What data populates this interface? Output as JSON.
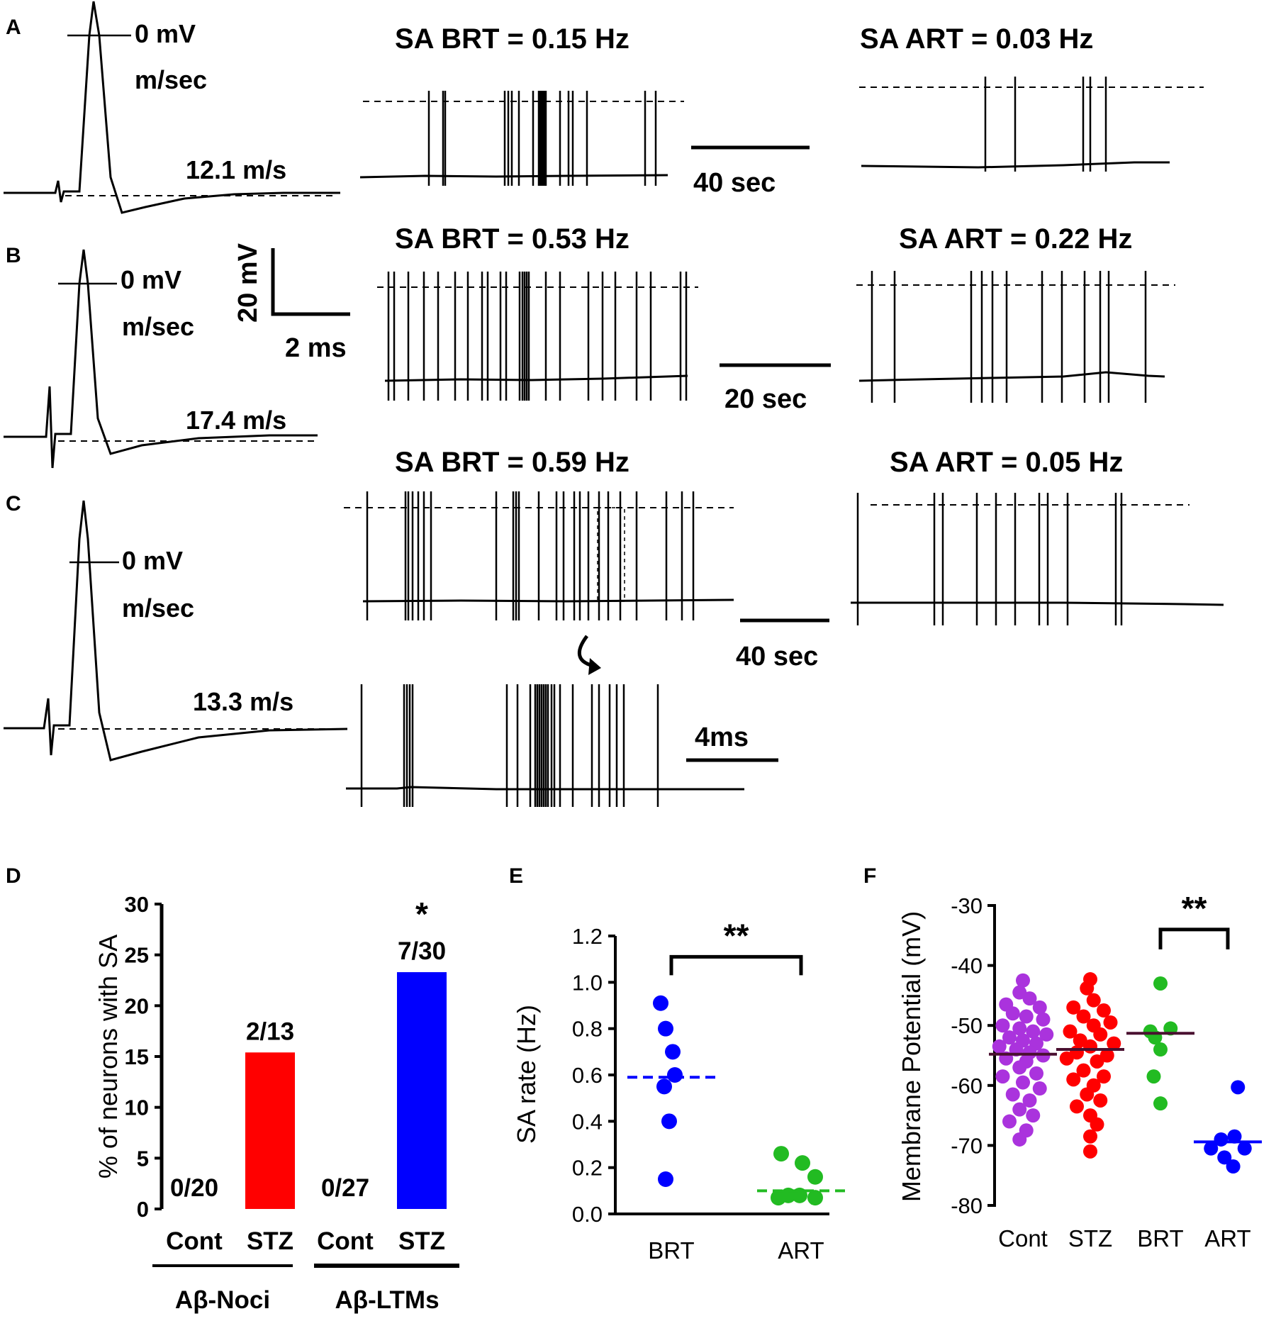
{
  "panel_labels": {
    "a": "A",
    "b": "B",
    "c": "C",
    "d": "D",
    "e": "E",
    "f": "F"
  },
  "row_a": {
    "ap_zero": "0 mV",
    "ap_time_unit": "m/sec",
    "ap_velocity": "12.1 m/s",
    "brt_title": "SA BRT = 0.15 Hz",
    "art_title": "SA ART = 0.03 Hz",
    "time_scale": "40 sec"
  },
  "row_b": {
    "ap_zero": "0 mV",
    "ap_time_unit": "m/sec",
    "ap_velocity": "17.4 m/s",
    "volt_scale": "20 mV",
    "ms_scale": "2 ms",
    "brt_title": "SA BRT = 0.53 Hz",
    "art_title": "SA ART = 0.22 Hz",
    "time_scale": "20 sec"
  },
  "row_c": {
    "ap_zero": "0 mV",
    "ap_time_unit": "m/sec",
    "ap_velocity": "13.3 m/s",
    "brt_title": "SA BRT = 0.59 Hz",
    "art_title": "SA ART = 0.05 Hz",
    "time_scale": "40 sec",
    "zoom_scale": "4ms"
  },
  "colors": {
    "red": "#ff0000",
    "blue": "#0000ff",
    "green": "#22bb22",
    "purple": "#aa33dd"
  },
  "chart_data": [
    {
      "panel": "D",
      "type": "bar",
      "ylabel": "% of neurons with SA",
      "ylim": [
        0,
        30
      ],
      "yticks": [
        "0",
        "5",
        "10",
        "15",
        "20",
        "25",
        "30"
      ],
      "categories": [
        "Cont",
        "STZ",
        "Cont",
        "STZ"
      ],
      "groups": [
        {
          "label": "Aβ-Noci",
          "bars": [
            0,
            1
          ]
        },
        {
          "label": "Aβ-LTMs",
          "bars": [
            2,
            3
          ]
        }
      ],
      "values": [
        0,
        15.4,
        0,
        23.3
      ],
      "bar_colors": [
        "#ff0000",
        "#ff0000",
        "#0000ff",
        "#0000ff"
      ],
      "data_labels": [
        "0/20",
        "2/13",
        "0/27",
        "7/30"
      ],
      "significance": [
        {
          "bar": 3,
          "label": "*"
        }
      ]
    },
    {
      "panel": "E",
      "type": "scatter",
      "ylabel": "SA rate (Hz)",
      "ylim": [
        0,
        1.2
      ],
      "yticks": [
        "0.0",
        "0.2",
        "0.4",
        "0.6",
        "0.8",
        "1.0",
        "1.2"
      ],
      "categories": [
        "BRT",
        "ART"
      ],
      "series": [
        {
          "name": "BRT",
          "color": "#0000ff",
          "median": 0.59,
          "median_style": "dashed",
          "points": [
            [
              -0.15,
              0.91
            ],
            [
              -0.08,
              0.8
            ],
            [
              0.02,
              0.7
            ],
            [
              -0.1,
              0.55
            ],
            [
              0.05,
              0.6
            ],
            [
              -0.03,
              0.4
            ],
            [
              -0.08,
              0.15
            ]
          ]
        },
        {
          "name": "ART",
          "color": "#22bb22",
          "median": 0.1,
          "median_style": "dashed",
          "points": [
            [
              -0.32,
              0.07
            ],
            [
              -0.18,
              0.08
            ],
            [
              -0.02,
              0.08
            ],
            [
              0.2,
              0.07
            ],
            [
              -0.28,
              0.26
            ],
            [
              0.02,
              0.22
            ],
            [
              0.2,
              0.16
            ]
          ]
        }
      ],
      "significance": [
        {
          "from": 0,
          "to": 1,
          "y": 1.11,
          "label": "**"
        }
      ]
    },
    {
      "panel": "F",
      "type": "scatter",
      "ylabel": "Membrane Potential (mV)",
      "ylim": [
        -80,
        -30
      ],
      "yticks": [
        "-30",
        "-40",
        "-50",
        "-60",
        "-70",
        "-80"
      ],
      "categories": [
        "Cont",
        "STZ",
        "BRT",
        "ART"
      ],
      "series": [
        {
          "name": "Cont",
          "color": "#aa33dd",
          "median": -54.8,
          "median_style": "solid-dark",
          "points": [
            [
              0,
              -42.5
            ],
            [
              -0.05,
              -44.5
            ],
            [
              0.1,
              -45.5
            ],
            [
              -0.25,
              -46.5
            ],
            [
              0.25,
              -47
            ],
            [
              -0.15,
              -48
            ],
            [
              0.05,
              -48.5
            ],
            [
              0.3,
              -49
            ],
            [
              -0.3,
              -50
            ],
            [
              -0.05,
              -50.5
            ],
            [
              0.15,
              -51
            ],
            [
              0.35,
              -51.5
            ],
            [
              -0.2,
              -52
            ],
            [
              0.0,
              -52.5
            ],
            [
              0.2,
              -53
            ],
            [
              -0.35,
              -53.5
            ],
            [
              -0.1,
              -54
            ],
            [
              0.1,
              -54.5
            ],
            [
              0.3,
              -55
            ],
            [
              -0.25,
              -55.5
            ],
            [
              0.05,
              -56
            ],
            [
              -0.05,
              -57
            ],
            [
              0.2,
              -58
            ],
            [
              -0.3,
              -58.5
            ],
            [
              0.0,
              -59.5
            ],
            [
              0.25,
              -60.5
            ],
            [
              -0.15,
              -61.5
            ],
            [
              0.1,
              -62.5
            ],
            [
              -0.05,
              -64
            ],
            [
              0.15,
              -65
            ],
            [
              -0.2,
              -66
            ],
            [
              0.05,
              -67.5
            ],
            [
              -0.05,
              -69
            ]
          ]
        },
        {
          "name": "STZ",
          "color": "#ff0000",
          "median": -54,
          "median_style": "solid-dark",
          "points": [
            [
              0.0,
              -42.3
            ],
            [
              -0.05,
              -43.8
            ],
            [
              0.05,
              -45.8
            ],
            [
              -0.25,
              -47
            ],
            [
              0.2,
              -47.5
            ],
            [
              -0.1,
              -48.5
            ],
            [
              0.3,
              -49.5
            ],
            [
              0.05,
              -50
            ],
            [
              -0.3,
              -51
            ],
            [
              0.15,
              -51.5
            ],
            [
              -0.15,
              -52.5
            ],
            [
              0.35,
              -53
            ],
            [
              0.0,
              -53.5
            ],
            [
              -0.2,
              -54.5
            ],
            [
              0.25,
              -55
            ],
            [
              -0.35,
              -55.5
            ],
            [
              0.1,
              -56
            ],
            [
              -0.1,
              -57.5
            ],
            [
              0.2,
              -58.5
            ],
            [
              -0.25,
              -59
            ],
            [
              0.05,
              -60
            ],
            [
              -0.05,
              -61.5
            ],
            [
              0.15,
              -62.5
            ],
            [
              -0.2,
              -63.5
            ],
            [
              0.0,
              -65
            ],
            [
              0.1,
              -66.5
            ],
            [
              0.0,
              -68.5
            ],
            [
              0.0,
              -71
            ]
          ]
        },
        {
          "name": "BRT",
          "color": "#22bb22",
          "median": -51.3,
          "median_style": "solid-dark",
          "points": [
            [
              0.0,
              -43
            ],
            [
              -0.15,
              -51
            ],
            [
              0.15,
              -50.5
            ],
            [
              -0.08,
              -52
            ],
            [
              0.0,
              -54
            ],
            [
              -0.1,
              -58.5
            ],
            [
              0.0,
              -63
            ]
          ]
        },
        {
          "name": "ART",
          "color": "#0000ff",
          "median": -69.4,
          "median_style": "solid-blue",
          "points": [
            [
              0.15,
              -60.3
            ],
            [
              -0.1,
              -69
            ],
            [
              0.1,
              -68.5
            ],
            [
              -0.25,
              -70.5
            ],
            [
              0.25,
              -70.5
            ],
            [
              -0.05,
              -72
            ],
            [
              0.08,
              -73.5
            ]
          ]
        }
      ],
      "significance": [
        {
          "from": 2,
          "to": 3,
          "y": -34,
          "label": "**"
        }
      ]
    }
  ]
}
